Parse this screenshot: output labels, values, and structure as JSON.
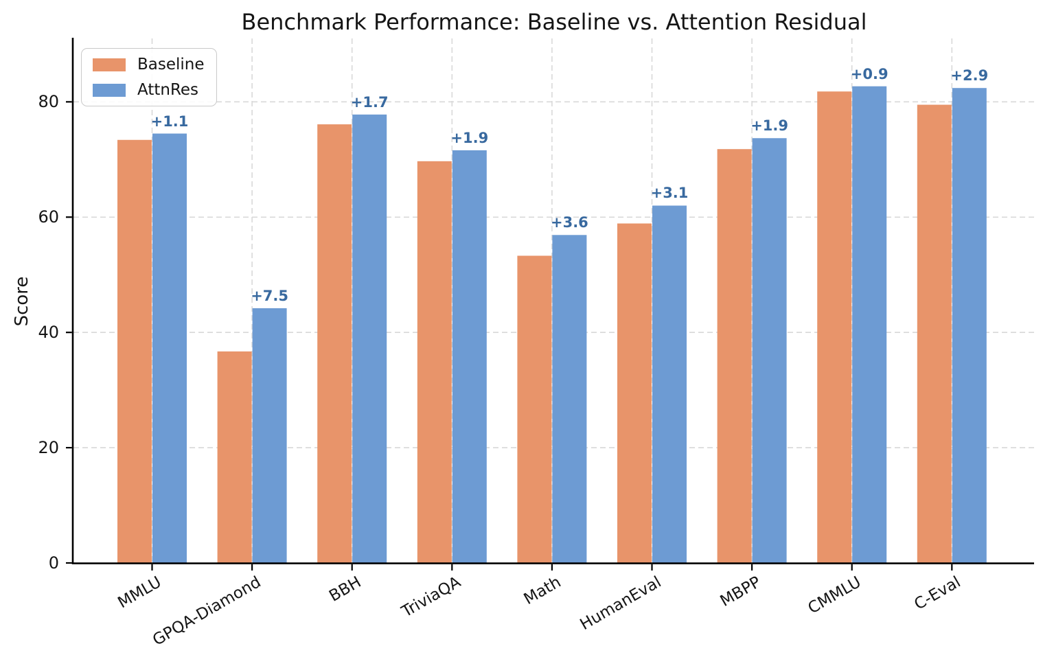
{
  "chart_data": {
    "type": "bar",
    "title": "Benchmark Performance: Baseline vs. Attention Residual",
    "ylabel": "Score",
    "xlabel": "",
    "categories": [
      "MMLU",
      "GPQA-Diamond",
      "BBH",
      "TriviaQA",
      "Math",
      "HumanEval",
      "MBPP",
      "CMMLU",
      "C-Eval"
    ],
    "series": [
      {
        "name": "Baseline",
        "color": "#E8946A",
        "values": [
          73.4,
          36.7,
          76.1,
          69.7,
          53.3,
          58.9,
          71.8,
          81.8,
          79.5
        ]
      },
      {
        "name": "AttnRes",
        "color": "#6D9BD3",
        "values": [
          74.5,
          44.2,
          77.8,
          71.6,
          56.9,
          62.0,
          73.7,
          82.7,
          82.4
        ]
      }
    ],
    "delta_labels": [
      "+1.1",
      "+7.5",
      "+1.7",
      "+1.9",
      "+3.6",
      "+3.1",
      "+1.9",
      "+0.9",
      "+2.9"
    ],
    "delta_color": "#38699F",
    "yticks": [
      0,
      20,
      40,
      60,
      80
    ],
    "ylim": [
      0,
      91
    ],
    "grid": true,
    "grid_color": "#d8d8d8",
    "axis_color": "#000000",
    "background": "#ffffff",
    "legend_position": "upper-left"
  }
}
